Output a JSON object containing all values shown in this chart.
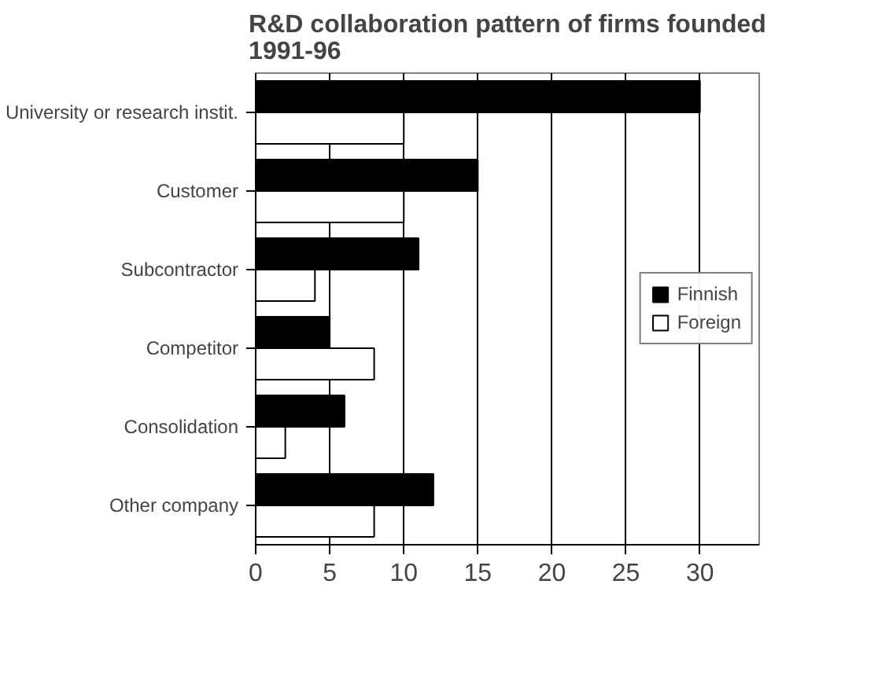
{
  "chart_data": {
    "type": "bar",
    "orientation": "horizontal",
    "title": "R&D collaboration pattern of firms founded\n1991-96",
    "categories": [
      "University or research instit.",
      "Customer",
      "Subcontractor",
      "Competitor",
      "Consolidation",
      "Other company"
    ],
    "series": [
      {
        "name": "Finnish",
        "color": "#000000",
        "values": [
          30,
          15,
          11,
          5,
          6,
          12
        ]
      },
      {
        "name": "Foreign",
        "color": "#ffffff",
        "values": [
          10,
          10,
          4,
          8,
          2,
          8
        ]
      }
    ],
    "xlim": [
      0,
      34
    ],
    "xticks": [
      0,
      5,
      10,
      15,
      20,
      25,
      30
    ],
    "grid": "x",
    "legend": "right"
  }
}
